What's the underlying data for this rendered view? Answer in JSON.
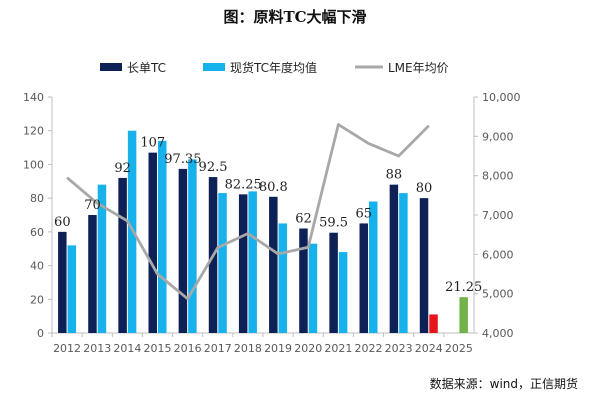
{
  "title": "图：原料TC大幅下滑",
  "source": "数据来源：wind，正信期货",
  "chart_data": {
    "type": "bar",
    "categories": [
      "2012",
      "2013",
      "2014",
      "2015",
      "2016",
      "2017",
      "2018",
      "2019",
      "2020",
      "2021",
      "2022",
      "2023",
      "2024",
      "2025"
    ],
    "series": [
      {
        "name": "长单TC",
        "type": "bar",
        "axis": "left",
        "color": "#0d2157",
        "values": [
          60,
          70,
          92,
          107,
          97.35,
          92.5,
          82.25,
          80.8,
          62,
          59.5,
          65,
          88,
          80,
          null
        ],
        "labels": [
          "60",
          "70",
          "92",
          "107",
          "97.35",
          "92.5",
          "82.25",
          "80.8",
          "62",
          "59.5",
          "65",
          "88",
          "80",
          ""
        ]
      },
      {
        "name": "现货TC年度均值",
        "type": "bar",
        "axis": "left",
        "color": "#17b2ec",
        "values": [
          52,
          88,
          120,
          114,
          103,
          83,
          84,
          65,
          53,
          48,
          78,
          83,
          11,
          21.25
        ],
        "labels": [
          "",
          "",
          "",
          "",
          "",
          "",
          "",
          "",
          "",
          "",
          "",
          "",
          "",
          "21.25"
        ],
        "overrides": {
          "2024": "#e8161b",
          "2025": "#71b34a"
        }
      },
      {
        "name": "LME年均价",
        "type": "line",
        "axis": "right",
        "color": "#a8a8a8",
        "values": [
          7950,
          7300,
          6850,
          5500,
          4870,
          6170,
          6530,
          6010,
          6180,
          9300,
          8820,
          8500,
          9270,
          null
        ]
      }
    ],
    "y_left": {
      "min": 0,
      "max": 140,
      "ticks": [
        "0",
        "20",
        "40",
        "60",
        "80",
        "100",
        "120",
        "140"
      ]
    },
    "y_right": {
      "min": 4000,
      "max": 10000,
      "ticks": [
        "4,000",
        "5,000",
        "6,000",
        "7,000",
        "8,000",
        "9,000",
        "10,000"
      ]
    },
    "legend": {
      "position": "top"
    },
    "grid": false
  }
}
